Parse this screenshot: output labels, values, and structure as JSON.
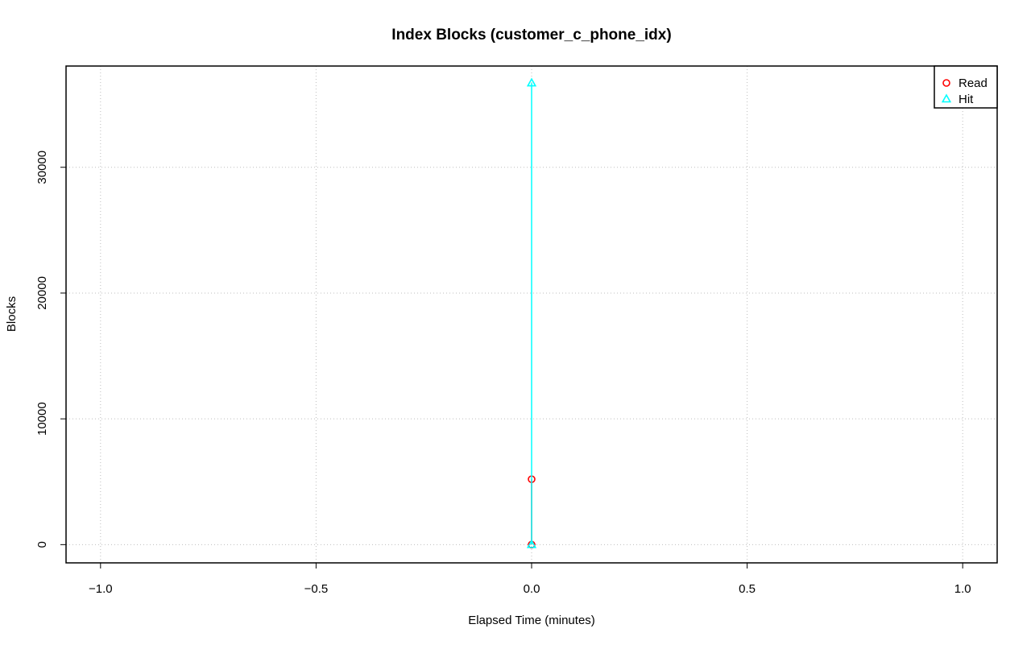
{
  "chart_data": {
    "type": "line",
    "title": "Index Blocks (customer_c_phone_idx)",
    "xlabel": "Elapsed Time (minutes)",
    "ylabel": "Blocks",
    "xlim": [
      -1.08,
      1.08
    ],
    "ylim": [
      -1450,
      38050
    ],
    "x_ticks": [
      -1.0,
      -0.5,
      0.0,
      0.5,
      1.0
    ],
    "x_tick_labels": [
      "−1.0",
      "−0.5",
      "0.0",
      "0.5",
      "1.0"
    ],
    "y_ticks": [
      0,
      10000,
      20000,
      30000
    ],
    "y_tick_labels": [
      "0",
      "10000",
      "20000",
      "30000"
    ],
    "grid": true,
    "legend_position": "top-right",
    "series": [
      {
        "name": "Read",
        "color": "#ff0000",
        "marker": "circle",
        "points": [
          [
            0,
            0
          ],
          [
            0,
            5200
          ]
        ]
      },
      {
        "name": "Hit",
        "color": "#00ffff",
        "marker": "triangle",
        "points": [
          [
            0,
            0
          ],
          [
            0,
            36700
          ]
        ]
      }
    ]
  }
}
